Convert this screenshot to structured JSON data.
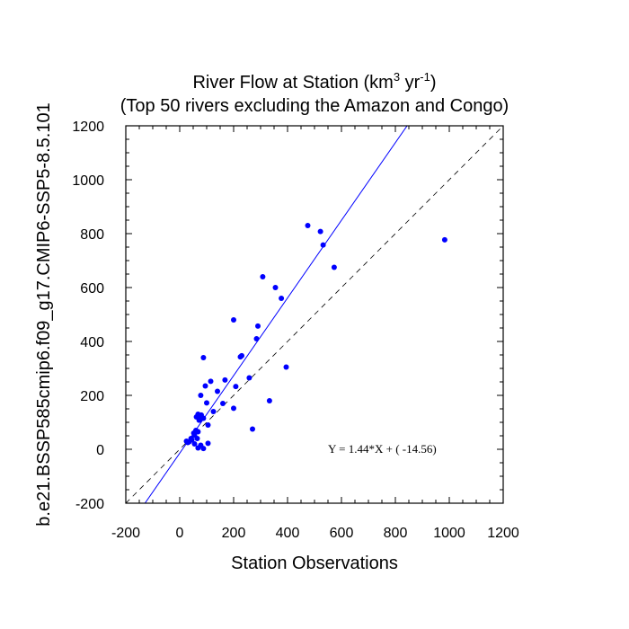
{
  "chart_data": {
    "type": "scatter",
    "title": "River Flow at Station (km",
    "title_sup1": "3",
    "title_mid": " yr",
    "title_sup2": "-1",
    "title_end": ")",
    "subtitle": "(Top 50 rivers excluding the Amazon and Congo)",
    "xlabel": "Station Observations",
    "ylabel": "b.e21.BSSP585cmip6.f09_g17.CMIP6-SSP5-8.5.101",
    "xlim": [
      -200,
      1200
    ],
    "ylim": [
      -200,
      1200
    ],
    "xticks": [
      -200,
      0,
      200,
      400,
      600,
      800,
      1000,
      1200
    ],
    "yticks": [
      -200,
      0,
      200,
      400,
      600,
      800,
      1000,
      1200
    ],
    "regression": {
      "slope": 1.44,
      "intercept": -14.56,
      "label": "Y =  1.44*X + (  -14.56)"
    },
    "point_color": "#0000ff",
    "line_color": "#0000ff",
    "points": [
      [
        983,
        777
      ],
      [
        475,
        830
      ],
      [
        522,
        808
      ],
      [
        532,
        758
      ],
      [
        573,
        675
      ],
      [
        308,
        640
      ],
      [
        355,
        600
      ],
      [
        377,
        560
      ],
      [
        200,
        480
      ],
      [
        290,
        457
      ],
      [
        285,
        410
      ],
      [
        395,
        305
      ],
      [
        225,
        343
      ],
      [
        230,
        347
      ],
      [
        88,
        340
      ],
      [
        258,
        265
      ],
      [
        115,
        252
      ],
      [
        168,
        257
      ],
      [
        95,
        235
      ],
      [
        140,
        215
      ],
      [
        208,
        233
      ],
      [
        78,
        200
      ],
      [
        333,
        180
      ],
      [
        100,
        172
      ],
      [
        160,
        170
      ],
      [
        200,
        152
      ],
      [
        125,
        140
      ],
      [
        68,
        130
      ],
      [
        80,
        127
      ],
      [
        62,
        120
      ],
      [
        75,
        118
      ],
      [
        88,
        115
      ],
      [
        105,
        90
      ],
      [
        60,
        70
      ],
      [
        68,
        65
      ],
      [
        52,
        60
      ],
      [
        55,
        52
      ],
      [
        42,
        40
      ],
      [
        25,
        30
      ],
      [
        35,
        28
      ],
      [
        30,
        25
      ],
      [
        55,
        20
      ],
      [
        78,
        15
      ],
      [
        105,
        22
      ],
      [
        68,
        5
      ],
      [
        88,
        3
      ],
      [
        65,
        40
      ],
      [
        45,
        35
      ],
      [
        270,
        75
      ],
      [
        72,
        108
      ]
    ]
  }
}
